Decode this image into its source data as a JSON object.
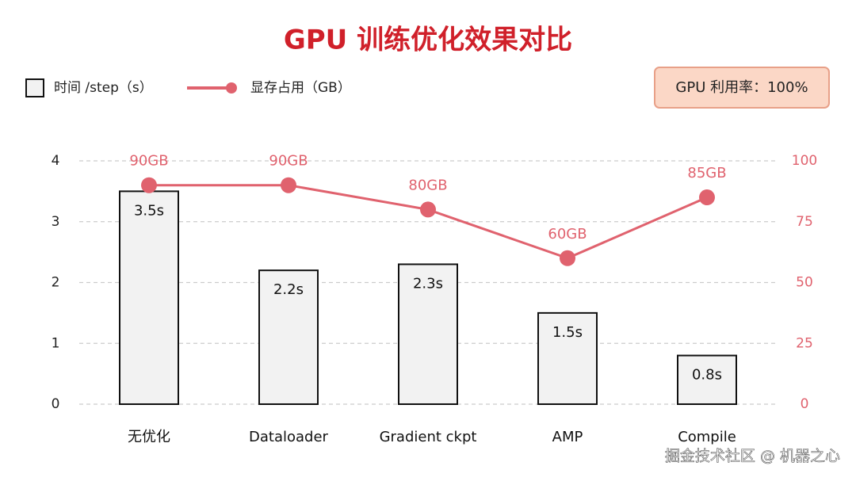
{
  "chart_data": {
    "type": "bar",
    "title": "GPU 训练优化效果对比",
    "annotation": "GPU 利用率：100%",
    "watermark": "掘金技术社区 @ 机器之心",
    "categories": [
      "无优化",
      "Dataloader",
      "Gradient ckpt",
      "AMP",
      "Compile"
    ],
    "series": [
      {
        "name": "时间 /step（s）",
        "color": "#f2f2f2",
        "values": [
          3.5,
          2.2,
          2.3,
          1.5,
          0.8
        ],
        "value_labels": [
          "3.5s",
          "2.2s",
          "2.3s",
          "1.5s",
          "0.8s"
        ]
      },
      {
        "name": "显存占用（GB）",
        "type": "line",
        "axis": "y2",
        "color": "#e0626e",
        "values": [
          90,
          90,
          80,
          60,
          85
        ],
        "value_labels": [
          "90GB",
          "90GB",
          "80GB",
          "60GB",
          "85GB"
        ]
      }
    ],
    "ylim": [
      0,
      4
    ],
    "yticks": [
      0,
      1,
      2,
      3,
      4
    ],
    "y2lim": [
      0,
      100
    ],
    "y2ticks": [
      0,
      25,
      50,
      75,
      100
    ],
    "grid": true
  }
}
